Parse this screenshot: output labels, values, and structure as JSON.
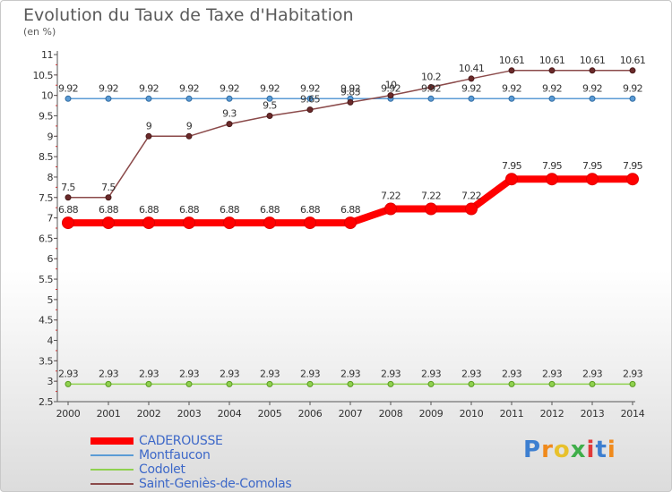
{
  "title": "Evolution du Taux de Taxe d'Habitation",
  "subtitle": "(en %)",
  "logo": "Proxiti",
  "chart_data": {
    "type": "line",
    "categories": [
      "2000",
      "2001",
      "2002",
      "2003",
      "2004",
      "2005",
      "2006",
      "2007",
      "2008",
      "2009",
      "2010",
      "2011",
      "2012",
      "2013",
      "2014"
    ],
    "ylim": [
      2.5,
      11
    ],
    "yticks": [
      "2.5",
      "3",
      "3.5",
      "4",
      "4.5",
      "5",
      "5.5",
      "6",
      "6.5",
      "7",
      "7.5",
      "8",
      "8.5",
      "9",
      "9.5",
      "10",
      "10.5",
      "11"
    ],
    "grid": false,
    "legend_position": "bottom",
    "series": [
      {
        "name": "CADEROUSSE",
        "color": "#ff0000",
        "values": [
          6.88,
          6.88,
          6.88,
          6.88,
          6.88,
          6.88,
          6.88,
          6.88,
          7.22,
          7.22,
          7.22,
          7.95,
          7.95,
          7.95,
          7.95
        ],
        "labels": [
          "6.88",
          "6.88",
          "6.88",
          "6.88",
          "6.88",
          "6.88",
          "6.88",
          "6.88",
          "7.22",
          "7.22",
          "7.22",
          "7.95",
          "7.95",
          "7.95",
          "7.95"
        ]
      },
      {
        "name": "Montfaucon",
        "color": "#5b9bd5",
        "values": [
          9.92,
          9.92,
          9.92,
          9.92,
          9.92,
          9.92,
          9.92,
          9.92,
          9.92,
          9.92,
          9.92,
          9.92,
          9.92,
          9.92,
          9.92
        ],
        "labels": [
          "9.92",
          "9.92",
          "9.92",
          "9.92",
          "9.92",
          "9.92",
          "9.92",
          "9.92",
          "9.92",
          "9.92",
          "9.92",
          "9.92",
          "9.92",
          "9.92",
          "9.92"
        ]
      },
      {
        "name": "Codolet",
        "color": "#8fd14f",
        "values": [
          2.93,
          2.93,
          2.93,
          2.93,
          2.93,
          2.93,
          2.93,
          2.93,
          2.93,
          2.93,
          2.93,
          2.93,
          2.93,
          2.93,
          2.93
        ],
        "labels": [
          "2.93",
          "2.93",
          "2.93",
          "2.93",
          "2.93",
          "2.93",
          "2.93",
          "2.93",
          "2.93",
          "2.93",
          "2.93",
          "2.93",
          "2.93",
          "2.93",
          "2.93"
        ]
      },
      {
        "name": "Saint-Geniès-de-Comolas",
        "color": "#8b4a4a",
        "values": [
          7.5,
          7.5,
          9,
          9,
          9.3,
          9.5,
          9.65,
          9.83,
          10,
          10.2,
          10.41,
          10.61,
          10.61,
          10.61,
          10.61
        ],
        "labels": [
          "7.5",
          "7.5",
          "9",
          "9",
          "9.3",
          "9.5",
          "9.65",
          "9.83",
          "10",
          "10.2",
          "10.41",
          "10.61",
          "10.61",
          "10.61",
          "10.61"
        ]
      }
    ]
  }
}
